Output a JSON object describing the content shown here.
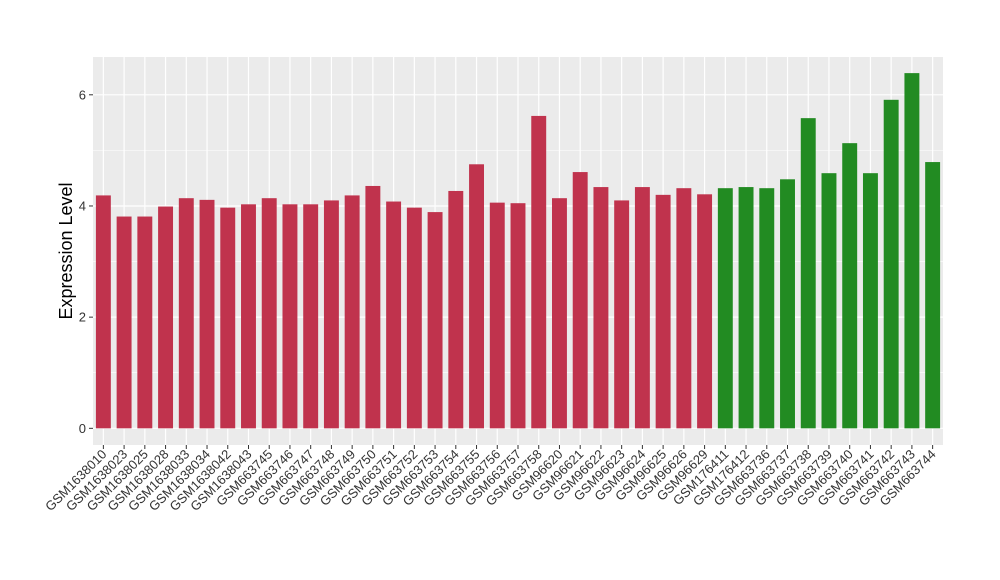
{
  "chart_data": {
    "type": "bar",
    "title": "",
    "xlabel": "",
    "ylabel": "Expression Level",
    "ylim": [
      -0.3,
      6.68
    ],
    "yticks": [
      0,
      2,
      4,
      6
    ],
    "grid": true,
    "colors": {
      "group1": "#c0334d",
      "group2": "#228b22",
      "panel": "#ebebeb",
      "grid": "#ffffff"
    },
    "categories": [
      "GSM1638010",
      "GSM1638023",
      "GSM1638025",
      "GSM1638028",
      "GSM1638033",
      "GSM1638034",
      "GSM1638042",
      "GSM1638043",
      "GSM663745",
      "GSM663746",
      "GSM663747",
      "GSM663748",
      "GSM663749",
      "GSM663750",
      "GSM663751",
      "GSM663752",
      "GSM663753",
      "GSM663754",
      "GSM663755",
      "GSM663756",
      "GSM663757",
      "GSM663758",
      "GSM96620",
      "GSM96621",
      "GSM96622",
      "GSM96623",
      "GSM96624",
      "GSM96625",
      "GSM96626",
      "GSM96629",
      "GSM176411",
      "GSM176412",
      "GSM663736",
      "GSM663737",
      "GSM663738",
      "GSM663739",
      "GSM663740",
      "GSM663741",
      "GSM663742",
      "GSM663743",
      "GSM663744"
    ],
    "values": [
      4.19,
      3.81,
      3.81,
      3.99,
      4.14,
      4.11,
      3.97,
      4.03,
      4.14,
      4.03,
      4.03,
      4.1,
      4.19,
      4.36,
      4.08,
      3.97,
      3.89,
      4.27,
      4.75,
      4.06,
      4.05,
      5.62,
      4.14,
      4.61,
      4.34,
      4.1,
      4.34,
      4.2,
      4.32,
      4.21,
      4.32,
      4.34,
      4.32,
      4.48,
      5.58,
      4.59,
      5.13,
      4.59,
      5.91,
      6.39,
      4.79
    ],
    "groups": [
      1,
      1,
      1,
      1,
      1,
      1,
      1,
      1,
      1,
      1,
      1,
      1,
      1,
      1,
      1,
      1,
      1,
      1,
      1,
      1,
      1,
      1,
      1,
      1,
      1,
      1,
      1,
      1,
      1,
      1,
      2,
      2,
      2,
      2,
      2,
      2,
      2,
      2,
      2,
      2,
      2
    ]
  }
}
